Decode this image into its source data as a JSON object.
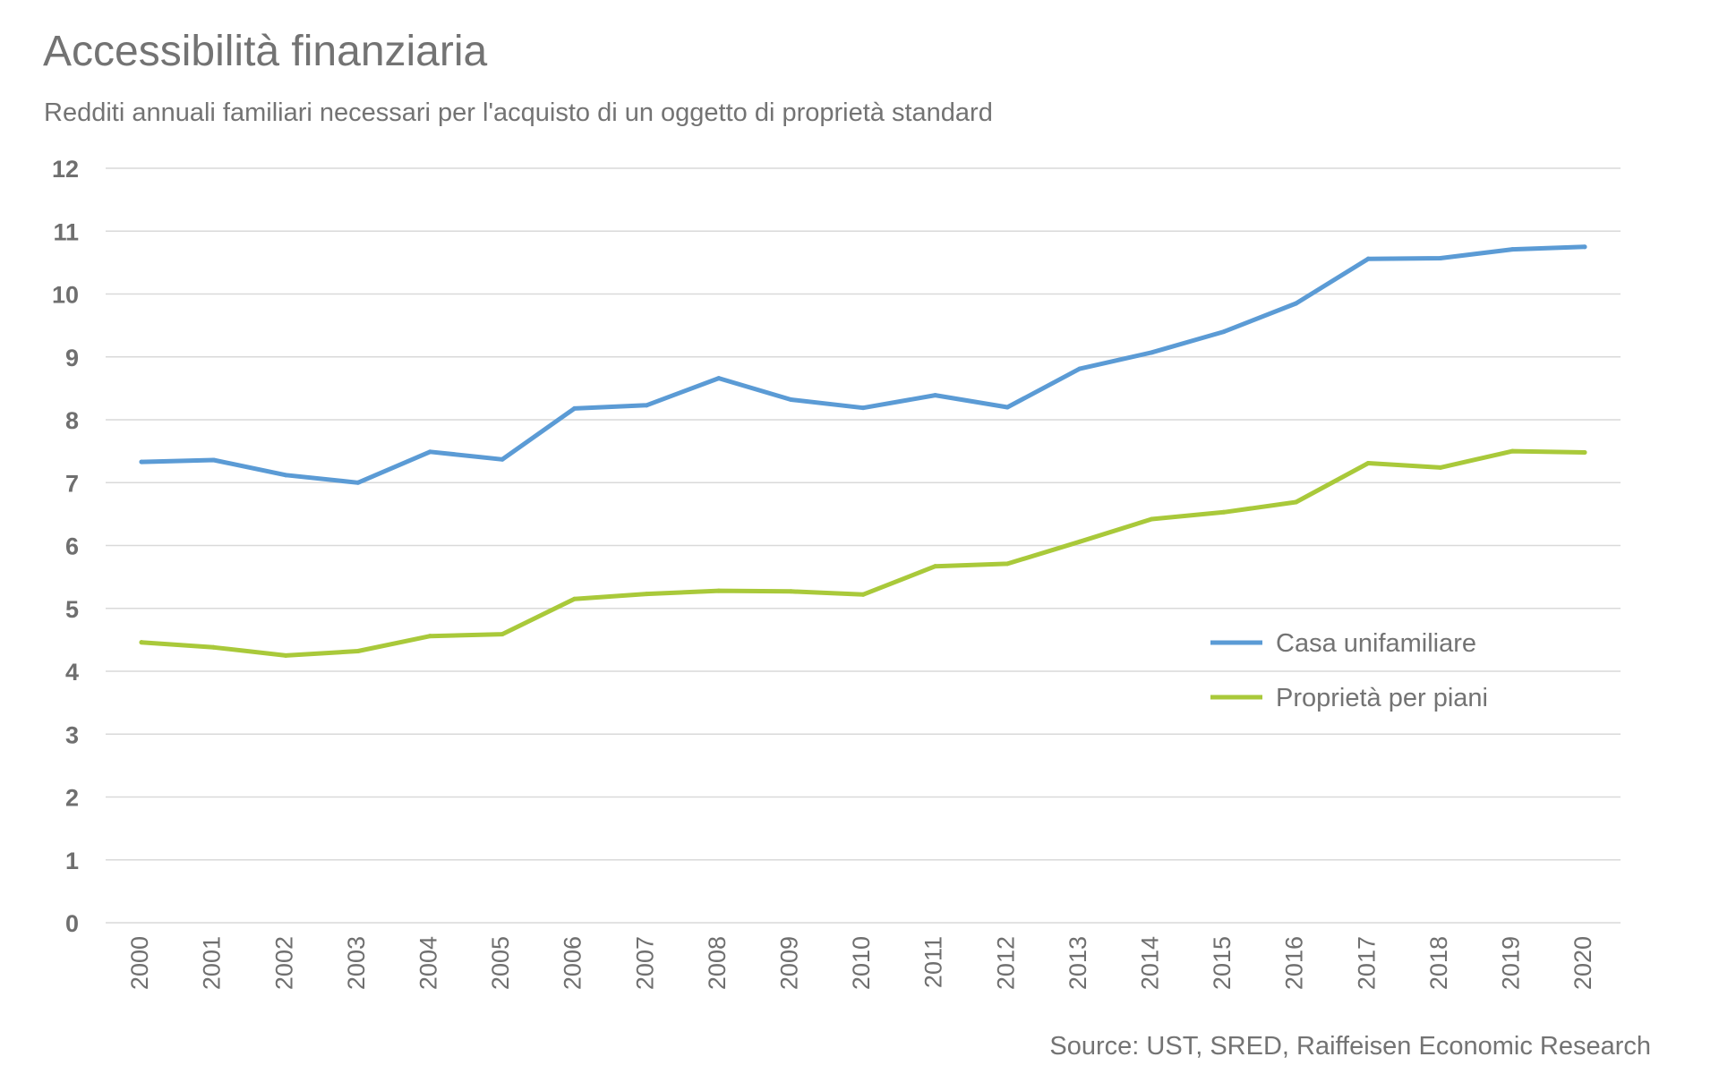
{
  "chart_data": {
    "type": "line",
    "title": "Accessibilità finanziaria",
    "subtitle": "Redditi annuali familiari necessari per l'acquisto di un oggetto di proprietà standard",
    "source": "Source: UST, SRED, Raiffeisen Economic Research",
    "xlabel": "",
    "ylabel": "",
    "ylim": [
      0,
      12
    ],
    "yticks": [
      "0",
      "1",
      "2",
      "3",
      "4",
      "5",
      "6",
      "7",
      "8",
      "9",
      "10",
      "11",
      "12"
    ],
    "grid": true,
    "legend_position": "right",
    "categories": [
      "2000",
      "2001",
      "2002",
      "2003",
      "2004",
      "2005",
      "2006",
      "2007",
      "2008",
      "2009",
      "2010",
      "2011",
      "2012",
      "2013",
      "2014",
      "2015",
      "2016",
      "2017",
      "2018",
      "2019",
      "2020"
    ],
    "series": [
      {
        "name": "Casa unifamiliare",
        "color": "#5b9bd5",
        "values": [
          7.33,
          7.36,
          7.12,
          7.0,
          7.49,
          7.37,
          8.18,
          8.23,
          8.66,
          8.32,
          8.19,
          8.39,
          8.2,
          8.81,
          9.07,
          9.4,
          9.85,
          10.56,
          10.57,
          10.71,
          10.75
        ]
      },
      {
        "name": "Proprietà per piani",
        "color": "#a9c93a",
        "values": [
          4.46,
          4.38,
          4.25,
          4.32,
          4.56,
          4.59,
          5.15,
          5.23,
          5.28,
          5.27,
          5.22,
          5.67,
          5.71,
          6.06,
          6.42,
          6.53,
          6.69,
          7.31,
          7.24,
          7.5,
          7.48
        ]
      }
    ]
  }
}
